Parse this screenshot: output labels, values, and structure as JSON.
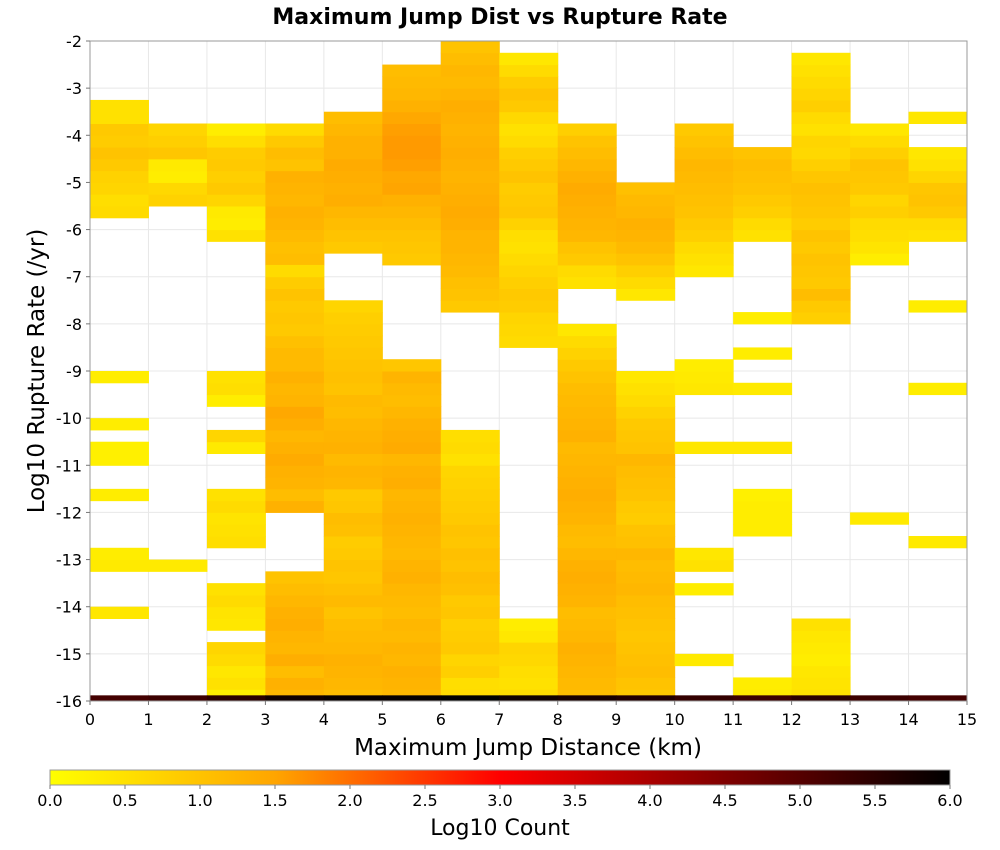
{
  "chart_data": {
    "type": "heatmap",
    "title": "Maximum Jump Dist vs Rupture Rate",
    "xlabel": "Maximum Jump Distance (km)",
    "ylabel": "Log10 Rupture Rate (/yr)",
    "colorbar_label": "Log10 Count",
    "xlim": [
      0,
      15
    ],
    "ylim": [
      -16,
      -2
    ],
    "x_ticks": [
      "0",
      "1",
      "2",
      "3",
      "4",
      "5",
      "6",
      "7",
      "8",
      "9",
      "10",
      "11",
      "12",
      "13",
      "14",
      "15"
    ],
    "y_ticks": [
      "-2",
      "-3",
      "-4",
      "-5",
      "-6",
      "-7",
      "-8",
      "-9",
      "-10",
      "-11",
      "-12",
      "-13",
      "-14",
      "-15",
      "-16"
    ],
    "colorbar_range": [
      0.0,
      6.0
    ],
    "colorbar_ticks": [
      "0.0",
      "0.5",
      "1.0",
      "1.5",
      "2.0",
      "2.5",
      "3.0",
      "3.5",
      "4.0",
      "4.5",
      "5.0",
      "5.5",
      "6.0"
    ],
    "colormap": [
      "#ffff00",
      "#ffa500",
      "#ff0000",
      "#000000"
    ],
    "grid": true,
    "x_bin_width": 1,
    "y_bin_height": 0.25,
    "note_on_values": "each row: x bin start, y bin start, [log10 count per 0.25-wide y bin, from that start upward]",
    "columns": [
      {
        "x": 0,
        "runs": [
          [
            -5.75,
            [
              0.6,
              0.55,
              0.7,
              0.75,
              0.9,
              1.0,
              0.85,
              0.9,
              0.5,
              0.5
            ]
          ],
          [
            -9.25,
            [
              0.3
            ]
          ],
          [
            -10.25,
            [
              0.3
            ]
          ],
          [
            -11.0,
            [
              0.25,
              0.25
            ]
          ],
          [
            -11.75,
            [
              0.3
            ]
          ],
          [
            -13.25,
            [
              0.35,
              0.3
            ]
          ],
          [
            -14.25,
            [
              0.4
            ]
          ]
        ]
      },
      {
        "x": 1,
        "runs": [
          [
            -5.5,
            [
              0.75,
              0.65,
              0.3,
              0.35,
              0.95,
              0.8,
              0.7
            ]
          ],
          [
            -13.25,
            [
              0.35
            ]
          ]
        ]
      },
      {
        "x": 2,
        "runs": [
          [
            -6.25,
            [
              0.5,
              0.3,
              0.35,
              0.7,
              0.9,
              0.8,
              0.9,
              0.85,
              0.55,
              0.3
            ]
          ],
          [
            -9.75,
            [
              0.3,
              0.55,
              0.5
            ]
          ],
          [
            -10.75,
            [
              0.35,
              0.7
            ]
          ],
          [
            -12.75,
            [
              0.55,
              0.5,
              0.45,
              0.6,
              0.5
            ]
          ],
          [
            -14.5,
            [
              0.4,
              0.45,
              0.6,
              0.5
            ]
          ],
          [
            -16.0,
            [
              0.3,
              0.5,
              0.4,
              0.6,
              0.7
            ]
          ]
        ]
      },
      {
        "x": 3,
        "runs": [
          [
            -6.75,
            [
              1.1,
              1.05,
              1.15,
              1.25,
              1.3,
              1.2,
              1.25,
              1.3,
              1.0,
              1.1,
              0.9,
              0.6
            ]
          ],
          [
            -12.0,
            [
              1.3,
              1.1,
              1.25,
              1.3,
              1.4,
              1.3,
              1.2,
              1.35,
              1.45,
              1.25,
              1.2,
              1.3,
              1.15,
              1.15,
              1.05,
              0.9,
              0.95,
              0.9,
              1.0,
              0.85,
              0.6
            ]
          ],
          [
            -16.0,
            [
              1.2,
              1.3,
              1.1,
              1.35,
              1.2,
              1.25,
              1.35,
              1.3,
              1.2,
              1.1,
              1.0
            ]
          ]
        ]
      },
      {
        "x": 4,
        "runs": [
          [
            -6.5,
            [
              0.9,
              1.0,
              1.1,
              1.2,
              1.35,
              1.3,
              1.35,
              1.4,
              1.3,
              1.3,
              1.2,
              1.1
            ]
          ],
          [
            -16.0,
            [
              1.1,
              1.2,
              1.25,
              1.3,
              1.2,
              1.15,
              1.1,
              1.0,
              1.15,
              1.05,
              0.95,
              1.0,
              0.9,
              0.85,
              1.05,
              1.1,
              0.95,
              0.9,
              1.2,
              1.25,
              1.15,
              1.3,
              1.25,
              1.2,
              1.1,
              1.15,
              1.0,
              1.05,
              1.0,
              0.95,
              0.9,
              0.85,
              0.8,
              0.7
            ]
          ]
        ]
      },
      {
        "x": 5,
        "runs": [
          [
            -6.75,
            [
              0.9,
              0.95,
              1.0,
              1.1,
              1.2,
              1.3,
              1.5,
              1.45,
              1.55,
              1.6,
              1.6,
              1.55,
              1.45,
              1.3,
              1.2,
              1.15,
              1.1
            ]
          ],
          [
            -16.0,
            [
              1.2,
              1.25,
              1.3,
              1.2,
              1.25,
              1.15,
              1.2,
              1.1,
              1.15,
              1.2,
              1.3,
              1.25,
              1.15,
              1.2,
              1.25,
              1.3,
              1.25,
              1.2,
              1.35,
              1.3,
              1.2,
              1.4,
              1.35,
              1.3,
              1.2,
              1.1,
              1.15,
              1.25,
              0.95
            ]
          ]
        ]
      },
      {
        "x": 6,
        "runs": [
          [
            -7.75,
            [
              0.9,
              1.0,
              1.05,
              1.15,
              1.2,
              1.25,
              1.25,
              1.35,
              1.4,
              1.35,
              1.3,
              1.25,
              1.3,
              1.35,
              1.3,
              1.25,
              1.3,
              1.35,
              1.25,
              1.15,
              1.2,
              1.1,
              1.0
            ]
          ],
          [
            -16.0,
            [
              0.6,
              0.55,
              0.8,
              0.7,
              0.9,
              0.85,
              0.8,
              0.95,
              0.9,
              1.05,
              1.1,
              1.0,
              1.05,
              0.95,
              1.0,
              0.9,
              0.85,
              0.8,
              0.75,
              0.7,
              0.5,
              0.6,
              0.55
            ]
          ]
        ]
      },
      {
        "x": 7,
        "runs": [
          [
            -7.0,
            [
              0.5,
              0.6,
              0.7,
              0.9,
              1.0,
              1.2,
              1.25,
              1.35,
              1.3,
              1.2,
              1.1
            ]
          ],
          [
            -8.5,
            [
              0.6,
              0.65,
              0.7,
              0.85,
              0.9,
              0.8,
              0.7,
              0.6,
              0.5,
              0.55,
              0.75,
              0.95,
              0.9,
              0.85,
              1.0,
              0.9,
              0.8,
              0.6,
              0.5,
              0.65,
              0.9,
              1.0,
              0.85,
              0.6,
              0.4
            ]
          ],
          [
            -16.0,
            [
              0.6,
              0.5,
              0.55,
              0.65,
              0.7,
              0.4,
              0.3
            ]
          ]
        ]
      },
      {
        "x": 8,
        "runs": [
          [
            -7.25,
            [
              0.5,
              0.6,
              0.9,
              1.0,
              1.2,
              1.25,
              1.3,
              1.35,
              1.4,
              1.3,
              1.2,
              1.1,
              1.0,
              0.8
            ]
          ],
          [
            -16.0,
            [
              1.1,
              1.15,
              1.2,
              1.25,
              1.3,
              1.2,
              1.15,
              1.1,
              1.25,
              1.3,
              1.35,
              1.3,
              1.2,
              1.1,
              1.15,
              1.25,
              1.3,
              1.35,
              1.3,
              1.25,
              1.2,
              1.15,
              1.3,
              1.25,
              1.2,
              1.15,
              1.1,
              1.0,
              0.9,
              0.75,
              0.6,
              0.4
            ]
          ]
        ]
      },
      {
        "x": 9,
        "runs": [
          [
            -7.5,
            [
              0.4,
              0.6,
              0.8,
              1.0,
              1.15,
              1.25,
              1.3,
              1.2,
              1.15,
              1.05
            ]
          ],
          [
            -16.0,
            [
              0.9,
              1.0,
              1.1,
              1.05,
              1.0,
              0.95,
              1.0,
              1.05,
              1.1,
              1.2,
              1.15,
              1.1,
              1.2,
              1.05,
              1.0,
              0.85,
              0.9,
              1.0,
              1.05,
              1.1,
              1.2,
              1.0,
              0.95,
              0.9,
              0.75,
              0.6,
              0.5,
              0.4
            ]
          ]
        ]
      },
      {
        "x": 10,
        "runs": [
          [
            -7.0,
            [
              0.4,
              0.5,
              0.6,
              0.8,
              0.9,
              1.0,
              1.05,
              1.1,
              1.15,
              1.2,
              1.1,
              1.0,
              0.9
            ]
          ],
          [
            -9.5,
            [
              0.4,
              0.35,
              0.3
            ]
          ],
          [
            -10.75,
            [
              0.4
            ]
          ],
          [
            -13.25,
            [
              0.5,
              0.4
            ]
          ],
          [
            -13.75,
            [
              0.3
            ]
          ],
          [
            -15.25,
            [
              0.35
            ]
          ]
        ]
      },
      {
        "x": 11,
        "runs": [
          [
            -6.25,
            [
              0.5,
              0.6,
              0.8,
              0.9,
              1.0,
              1.05,
              1.1,
              1.0
            ]
          ],
          [
            -8.0,
            [
              0.3
            ]
          ],
          [
            -8.75,
            [
              0.3
            ]
          ],
          [
            -9.5,
            [
              0.35
            ]
          ],
          [
            -10.75,
            [
              0.4
            ]
          ],
          [
            -12.5,
            [
              0.3,
              0.3,
              0.3,
              0.25
            ]
          ],
          [
            -16.0,
            [
              0.35,
              0.3
            ]
          ]
        ]
      },
      {
        "x": 12,
        "runs": [
          [
            -6.75,
            [
              0.6,
              0.7,
              0.8,
              1.0,
              1.1,
              1.2,
              1.25,
              1.3,
              1.2,
              1.1
            ]
          ],
          [
            -7.25,
            [
              0.9
            ]
          ],
          [
            -8.0,
            [
              0.8,
              0.9,
              1.1,
              0.9,
              0.95,
              1.0,
              0.9,
              1.0,
              0.85,
              0.95,
              1.0,
              1.05,
              0.95,
              0.8,
              0.65,
              0.7,
              0.5,
              0.6,
              0.8,
              0.7,
              0.6,
              0.5,
              0.4
            ]
          ],
          [
            -16.0,
            [
              0.5,
              0.45,
              0.4,
              0.3,
              0.35,
              0.4,
              0.5
            ]
          ]
        ]
      },
      {
        "x": 13,
        "runs": [
          [
            -6.75,
            [
              0.3,
              0.45,
              0.55,
              0.6,
              0.8,
              0.7,
              0.9,
              0.95,
              1.0,
              0.8,
              0.6,
              0.4
            ]
          ],
          [
            -12.25,
            [
              0.35
            ]
          ]
        ]
      },
      {
        "x": 14,
        "runs": [
          [
            -6.25,
            [
              0.5,
              0.6,
              0.9,
              1.0,
              0.95,
              0.7,
              0.5,
              0.4
            ]
          ],
          [
            -3.75,
            [
              0.4
            ]
          ],
          [
            -7.75,
            [
              0.3
            ]
          ],
          [
            -9.5,
            [
              0.3
            ]
          ],
          [
            -12.75,
            [
              0.35
            ]
          ]
        ]
      }
    ],
    "bottom_row": {
      "y": -16.0,
      "values": [
        5.2,
        5.3,
        5.5,
        5.8,
        5.9,
        5.9,
        6.0,
        5.8,
        5.7,
        5.6,
        5.4,
        5.3,
        5.5,
        5.3,
        5.2
      ]
    }
  }
}
